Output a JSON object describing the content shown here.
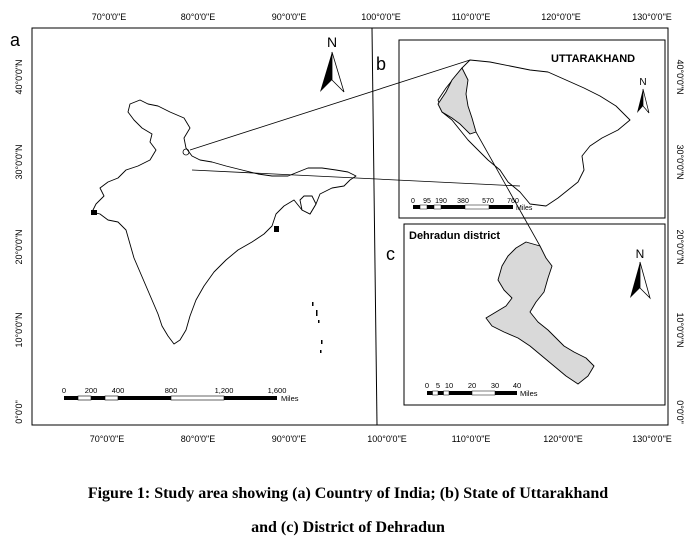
{
  "panels": {
    "a": {
      "letter": "a"
    },
    "b": {
      "letter": "b",
      "title": "UTTARAKHAND"
    },
    "c": {
      "letter": "c",
      "title": "Dehradun district"
    }
  },
  "north_label": "N",
  "longitude_labels": [
    "70°0'0\"E",
    "80°0'0\"E",
    "90°0'0\"E",
    "100°0'0\"E",
    "110°0'0\"E",
    "120°0'0\"E",
    "130°0'0\"E"
  ],
  "latitude_labels": [
    "40°0'0\"N",
    "30°0'0\"N",
    "20°0'0\"N",
    "10°0'0\"N",
    "0°0'0\""
  ],
  "scale_bars": {
    "india": {
      "ticks": [
        "0",
        "200",
        "400",
        "800",
        "1,200",
        "1,600"
      ],
      "unit": "Miles"
    },
    "uttarakhand": {
      "ticks": [
        "0",
        "95",
        "190",
        "380",
        "570",
        "760"
      ],
      "unit": "Miles"
    },
    "dehradun": {
      "ticks": [
        "0",
        "5",
        "10",
        "20",
        "30",
        "40"
      ],
      "unit": "Miles"
    }
  },
  "colors": {
    "frame": "#000000",
    "fill": "#d9d9d9",
    "outline": "#000000"
  },
  "caption": {
    "line1": "Figure 1: Study area showing (a) Country of India; (b) State of Uttarakhand",
    "line2": "and (c) District of Dehradun"
  }
}
